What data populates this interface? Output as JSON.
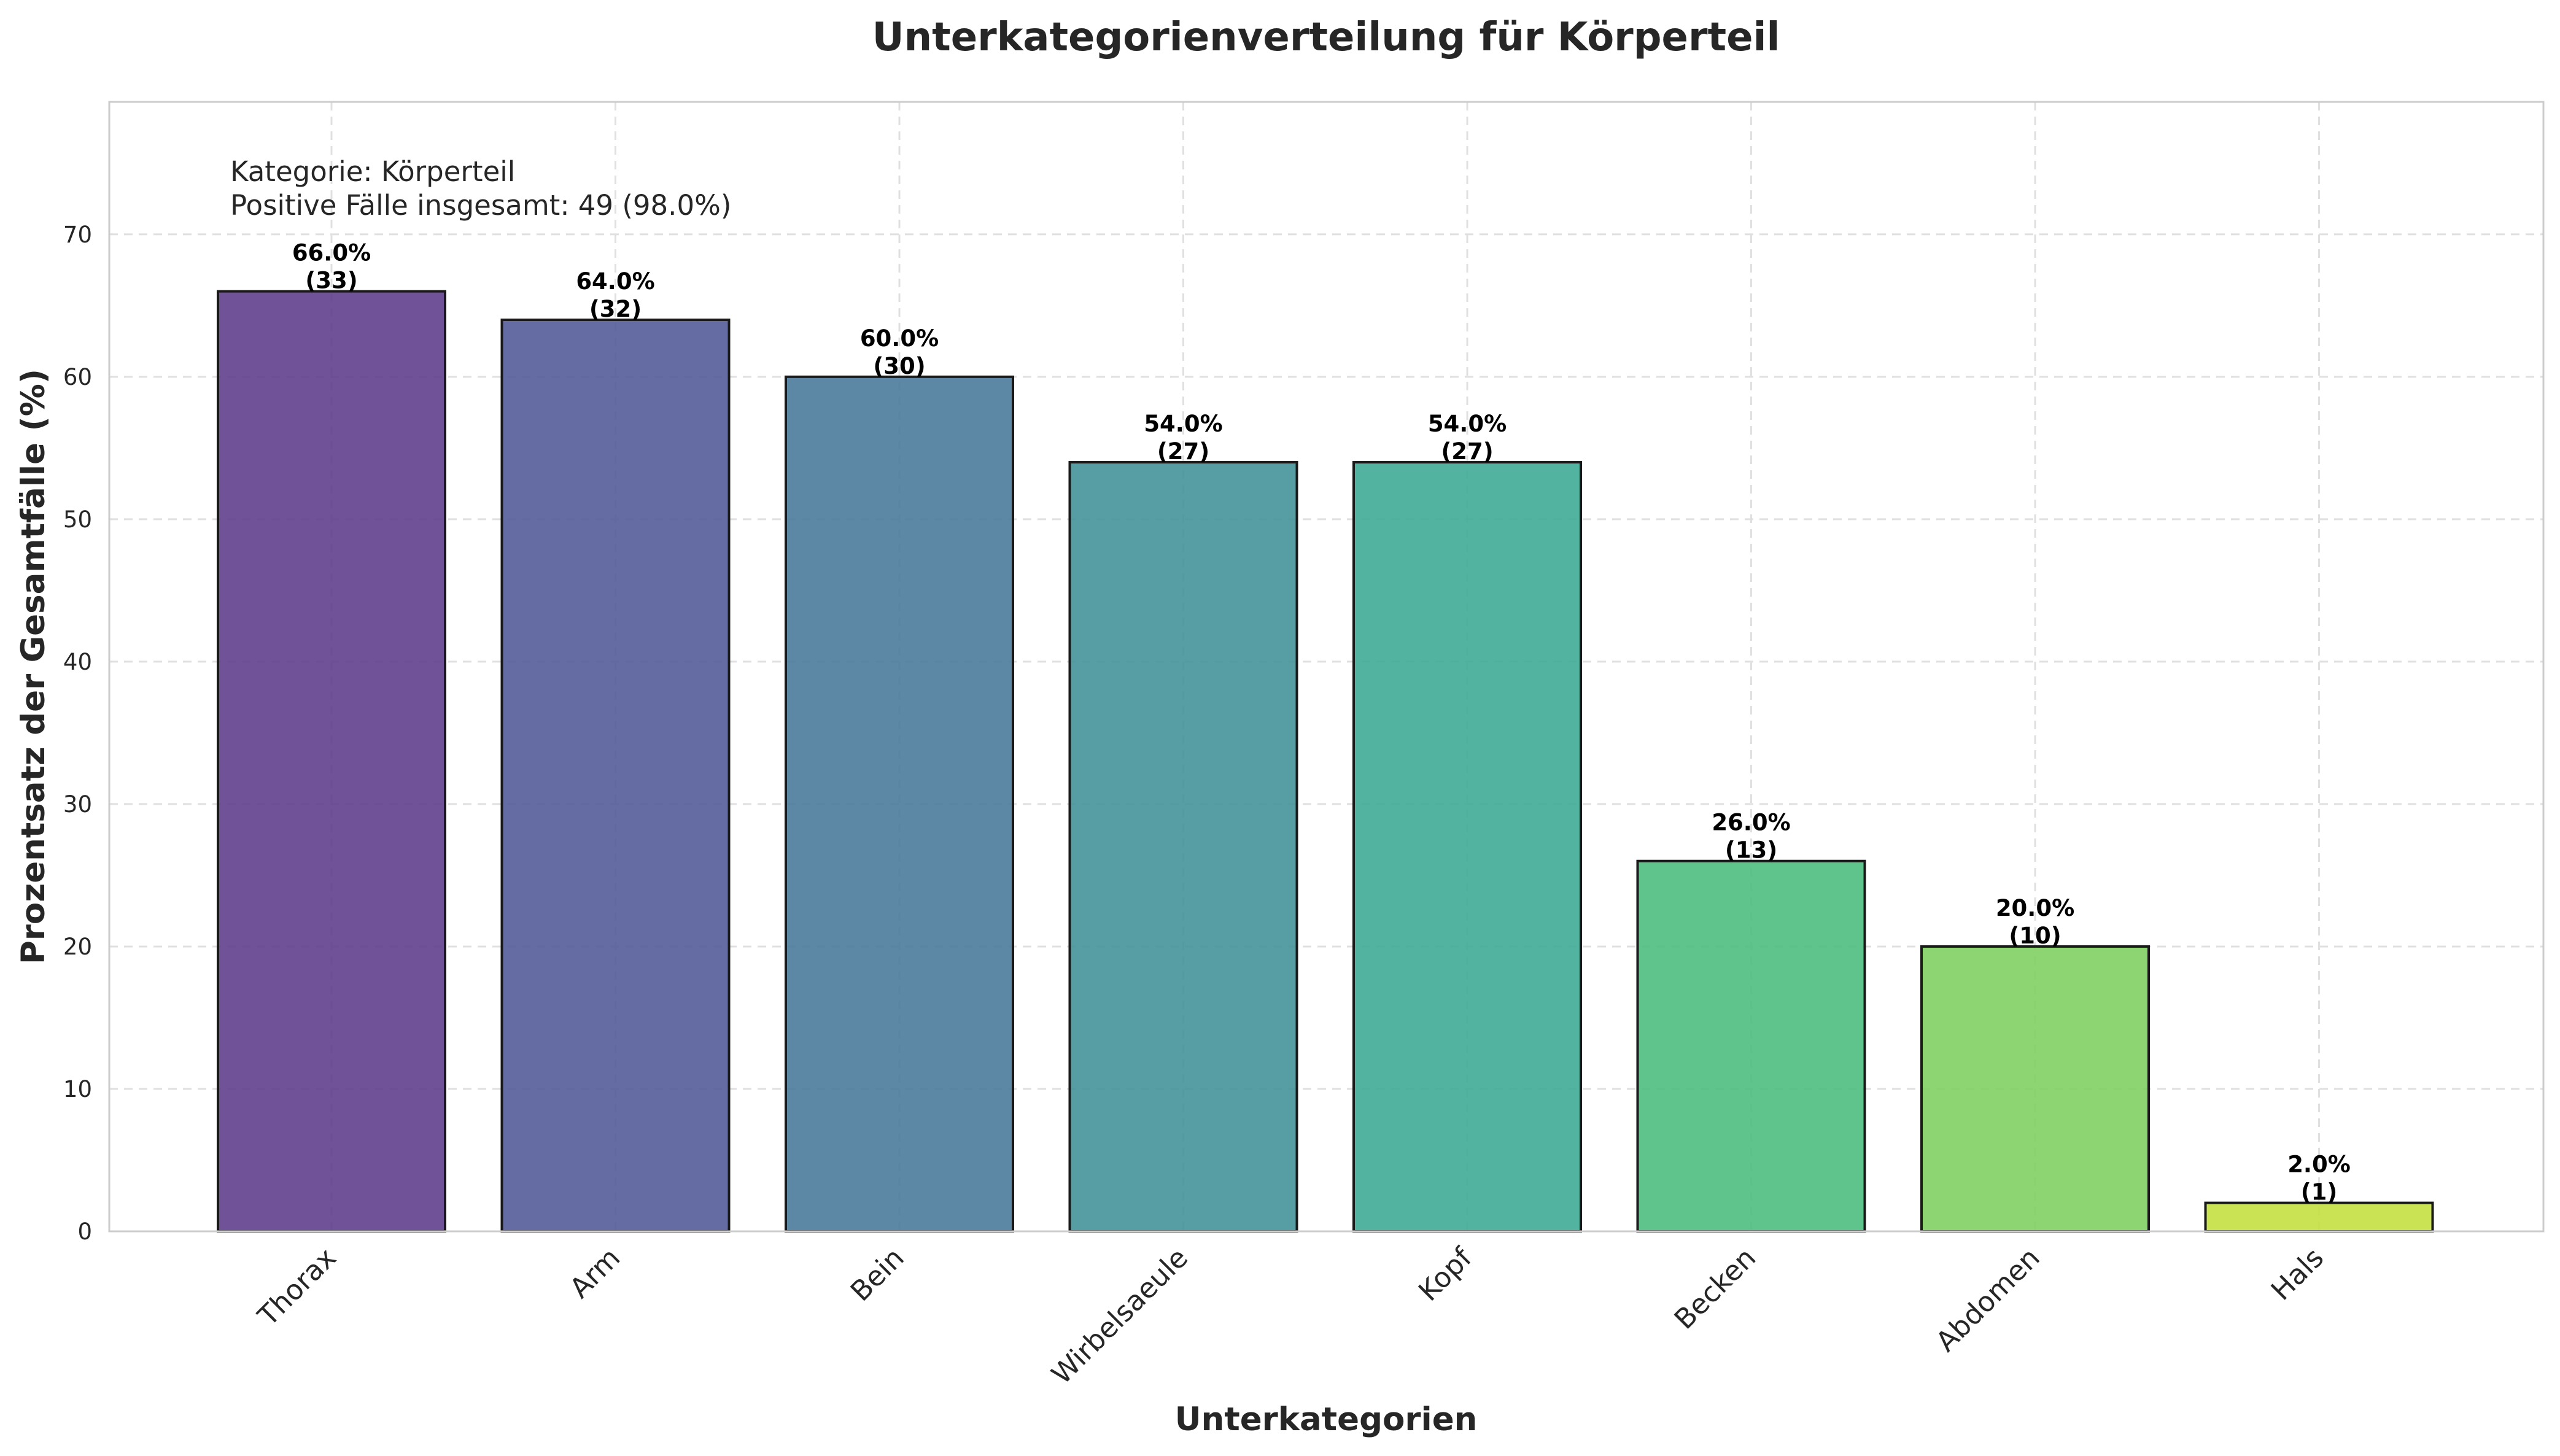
{
  "chart_data": {
    "type": "bar",
    "title": "Unterkategorienverteilung für Körperteil",
    "xlabel": "Unterkategorien",
    "ylabel": "Prozentsatz der Gesamtfälle (%)",
    "categories": [
      "Thorax",
      "Arm",
      "Bein",
      "Wirbelsaeule",
      "Kopf",
      "Becken",
      "Abdomen",
      "Hals"
    ],
    "values": [
      66.0,
      64.0,
      60.0,
      54.0,
      54.0,
      26.0,
      20.0,
      2.0
    ],
    "counts": [
      33,
      32,
      30,
      27,
      27,
      13,
      10,
      1
    ],
    "value_labels": [
      "66.0%",
      "64.0%",
      "60.0%",
      "54.0%",
      "54.0%",
      "26.0%",
      "20.0%",
      "2.0%"
    ],
    "count_labels": [
      "(33)",
      "(32)",
      "(30)",
      "(27)",
      "(27)",
      "(13)",
      "(10)",
      "(1)"
    ],
    "colors": [
      "#5b3a89",
      "#4e5896",
      "#467799",
      "#3f9196",
      "#3aa994",
      "#48bc7c",
      "#7ccf5f",
      "#c2df3e"
    ],
    "bar_opacity": 0.88,
    "ylim": [
      0,
      79.3
    ],
    "yticks": [
      0,
      10,
      20,
      30,
      40,
      50,
      60,
      70
    ],
    "ytick_labels": [
      "0",
      "10",
      "20",
      "30",
      "40",
      "50",
      "60",
      "70"
    ],
    "grid": true,
    "annotation": {
      "line1": "Kategorie: Körperteil",
      "line2": "Positive Fälle insgesamt: 49 (98.0%)"
    }
  }
}
